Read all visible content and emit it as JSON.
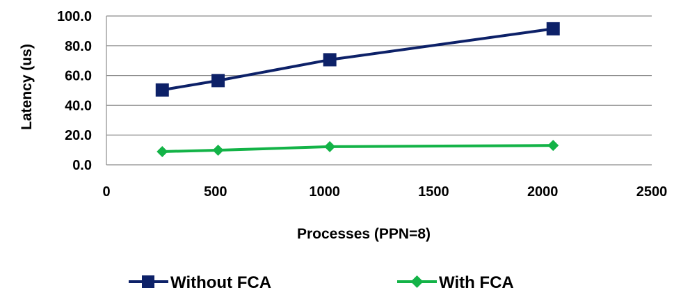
{
  "chart_data": {
    "type": "line",
    "title": "",
    "xlabel": "Processes (PPN=8)",
    "ylabel": "Latency (us)",
    "xlim": [
      0,
      2500
    ],
    "ylim": [
      0,
      100
    ],
    "x_ticks": [
      "0",
      "500",
      "1000",
      "1500",
      "2000",
      "2500"
    ],
    "y_ticks": [
      "0.0",
      "20.0",
      "40.0",
      "60.0",
      "80.0",
      "100.0"
    ],
    "grid": "horizontal",
    "legend_position": "bottom",
    "series": [
      {
        "name": "Without FCA",
        "color": "#0d2168",
        "marker": "square",
        "x": [
          256,
          512,
          1024,
          2048
        ],
        "values": [
          50.3,
          56.6,
          70.6,
          91.4
        ]
      },
      {
        "name": "With FCA",
        "color": "#13b347",
        "marker": "diamond",
        "x": [
          256,
          512,
          1024,
          2048
        ],
        "values": [
          8.9,
          9.8,
          12.2,
          13.0
        ]
      }
    ]
  }
}
